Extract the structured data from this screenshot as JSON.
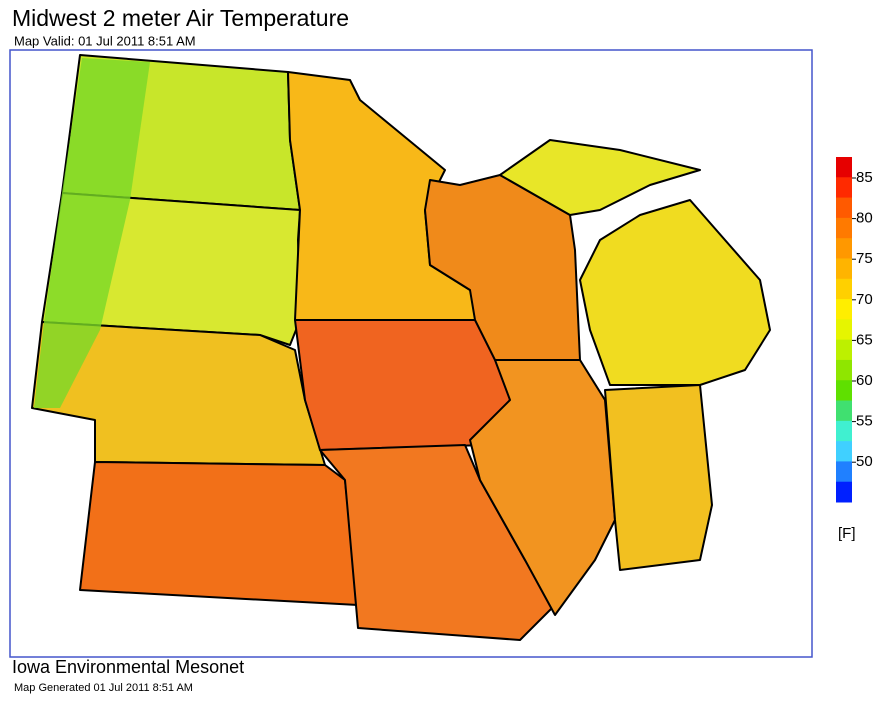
{
  "header": {
    "title": "Midwest 2 meter Air Temperature",
    "subtitle": "Map Valid: 01 Jul 2011 8:51 AM"
  },
  "legend": {
    "ticks": [
      85,
      80,
      75,
      70,
      65,
      60,
      55,
      50
    ],
    "unit": "[F]",
    "colors": [
      "#e60000",
      "#ff2a00",
      "#ff5a00",
      "#ff7a00",
      "#ff9800",
      "#ffb400",
      "#ffd000",
      "#ffee00",
      "#e6f500",
      "#bdf000",
      "#8fe600",
      "#5fe000",
      "#40e070",
      "#40f0d0",
      "#40d0ff",
      "#2080ff",
      "#0020ff"
    ]
  },
  "footer": {
    "org": "Iowa Environmental Mesonet",
    "generated": "Map Generated 01 Jul 2011 8:51 AM"
  }
}
